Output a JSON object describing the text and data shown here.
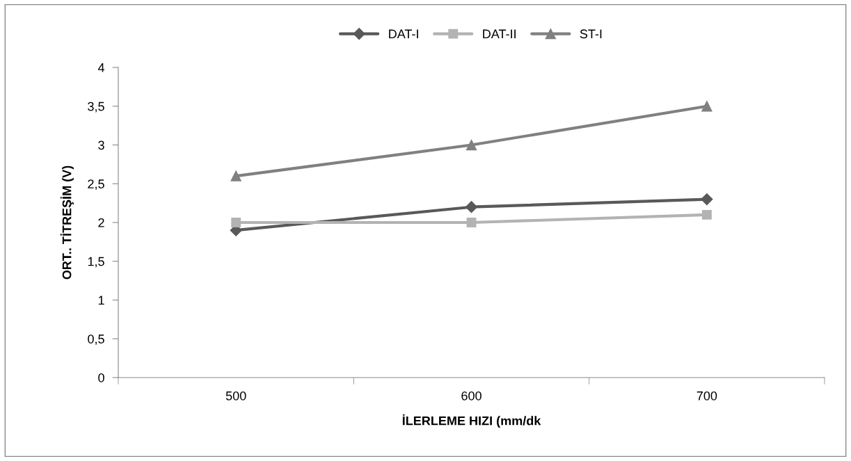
{
  "chart_data": {
    "type": "line",
    "xlabel": "İLERLEME HIZI (mm/dk",
    "ylabel": "ORT.. TİTREŞİM (V)",
    "categories": [
      "500",
      "600",
      "700"
    ],
    "series": [
      {
        "name": "DAT-I",
        "color": "#595959",
        "marker": "diamond",
        "values": [
          1.9,
          2.2,
          2.3
        ]
      },
      {
        "name": "DAT-II",
        "color": "#b3b3b3",
        "marker": "square",
        "values": [
          2.0,
          2.0,
          2.1
        ]
      },
      {
        "name": "ST-I",
        "color": "#808080",
        "marker": "triangle",
        "values": [
          2.6,
          3.0,
          3.5
        ]
      }
    ],
    "ylim": [
      0,
      4
    ],
    "yticks": [
      0,
      {
        "value": 0.5,
        "label": "0,5"
      },
      1,
      {
        "value": 1.5,
        "label": "1,5"
      },
      2,
      {
        "value": 2.5,
        "label": "2,5"
      },
      3,
      {
        "value": 3.5,
        "label": "3,5"
      },
      4
    ],
    "grid": false,
    "legend": "top",
    "line_style": "solid"
  }
}
